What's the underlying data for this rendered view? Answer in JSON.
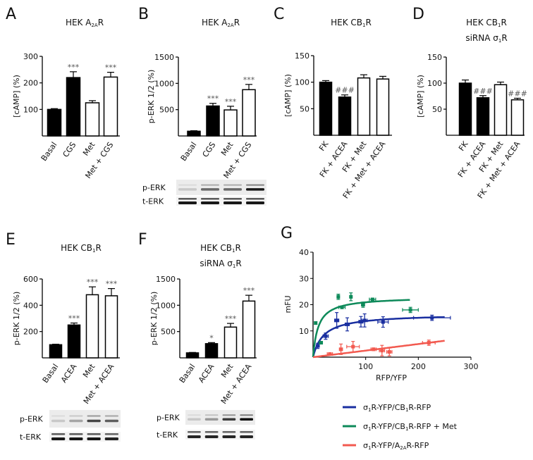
{
  "chart_data": [
    {
      "id": "A",
      "type": "bar",
      "letter": "A",
      "title": [
        [
          [
            "HEK A",
            0
          ],
          [
            "2A",
            1
          ],
          [
            "R",
            0
          ]
        ]
      ],
      "ylabel": "[cAMP] (%)",
      "ylim": [
        0,
        300
      ],
      "yticks": [
        100,
        200,
        300
      ],
      "categories": [
        "Basal",
        "CGS",
        "Met",
        "Met + CGS"
      ],
      "values": [
        100,
        220,
        125,
        222
      ],
      "errors": [
        3,
        22,
        8,
        18
      ],
      "fills": [
        "black",
        "black",
        "white",
        "white"
      ],
      "annotations": [
        "",
        "***",
        "",
        "***"
      ]
    },
    {
      "id": "B",
      "type": "bar",
      "letter": "B",
      "title": [
        [
          [
            "HEK A",
            0
          ],
          [
            "2A",
            1
          ],
          [
            "R",
            0
          ]
        ]
      ],
      "ylabel": "p-ERK 1/2 (%)",
      "ylim": [
        0,
        1500
      ],
      "yticks": [
        500,
        1000,
        1500
      ],
      "categories": [
        "Basal",
        "CGS",
        "Met",
        "Met + CGS"
      ],
      "values": [
        90,
        570,
        495,
        880
      ],
      "errors": [
        10,
        50,
        70,
        100
      ],
      "fills": [
        "black",
        "black",
        "white",
        "white"
      ],
      "annotations": [
        "",
        "***",
        "***",
        "***"
      ],
      "blot": {
        "rows": [
          {
            "label": "p-ERK",
            "band_intensity": [
              0.15,
              0.55,
              0.55,
              0.9
            ]
          },
          {
            "label": "t-ERK",
            "band_intensity": [
              0.9,
              0.9,
              0.9,
              0.9
            ]
          }
        ]
      }
    },
    {
      "id": "C",
      "type": "bar",
      "letter": "C",
      "title": [
        [
          [
            "HEK CB",
            0
          ],
          [
            "1",
            1
          ],
          [
            "R",
            0
          ]
        ]
      ],
      "ylabel": "[cAMP] (%)",
      "ylim": [
        0,
        150
      ],
      "yticks": [
        50,
        100,
        150
      ],
      "categories": [
        "FK",
        "FK + ACEA",
        "FK + Met",
        "FK + Met + ACEA"
      ],
      "values": [
        100,
        72,
        108,
        106
      ],
      "errors": [
        3,
        4,
        6,
        5
      ],
      "fills": [
        "black",
        "black",
        "white",
        "white"
      ],
      "annotations": [
        "",
        "###",
        "",
        ""
      ]
    },
    {
      "id": "D",
      "type": "bar",
      "letter": "D",
      "title": [
        [
          [
            "HEK CB",
            0
          ],
          [
            "1",
            1
          ],
          [
            "R",
            0
          ]
        ],
        [
          [
            "siRNA σ",
            0
          ],
          [
            "1",
            1
          ],
          [
            "R",
            0
          ]
        ]
      ],
      "ylabel": "[cAMP] (%)",
      "ylim": [
        0,
        150
      ],
      "yticks": [
        50,
        100,
        150
      ],
      "categories": [
        "FK",
        "FK + ACEA",
        "FK + Met",
        "FK + Met + ACEA"
      ],
      "values": [
        100,
        72,
        97,
        68
      ],
      "errors": [
        6,
        4,
        5,
        3
      ],
      "fills": [
        "black",
        "black",
        "white",
        "white"
      ],
      "annotations": [
        "",
        "###",
        "",
        "###"
      ]
    },
    {
      "id": "E",
      "type": "bar",
      "letter": "E",
      "title": [
        [
          [
            "HEK CB",
            0
          ],
          [
            "1",
            1
          ],
          [
            "R",
            0
          ]
        ]
      ],
      "ylabel": "p-ERK 1/2 (%)",
      "ylim": [
        0,
        600
      ],
      "yticks": [
        200,
        400,
        600
      ],
      "categories": [
        "Basal",
        "ACEA",
        "Met",
        "Met + ACEA"
      ],
      "values": [
        100,
        250,
        480,
        472
      ],
      "errors": [
        4,
        15,
        60,
        55
      ],
      "fills": [
        "black",
        "black",
        "white",
        "white"
      ],
      "annotations": [
        "",
        "***",
        "***",
        "***"
      ],
      "blot": {
        "rows": [
          {
            "label": "p-ERK",
            "band_intensity": [
              0.15,
              0.3,
              0.7,
              0.6
            ]
          },
          {
            "label": "t-ERK",
            "band_intensity": [
              0.9,
              0.9,
              0.9,
              0.85
            ]
          }
        ]
      }
    },
    {
      "id": "F",
      "type": "bar",
      "letter": "F",
      "title": [
        [
          [
            "HEK CB",
            0
          ],
          [
            "1",
            1
          ],
          [
            "R",
            0
          ]
        ],
        [
          [
            "siRNA σ",
            0
          ],
          [
            "1",
            1
          ],
          [
            "R",
            0
          ]
        ]
      ],
      "ylabel": "p-ERK 1/2 (%)",
      "ylim": [
        0,
        1500
      ],
      "yticks": [
        500,
        1000,
        1500
      ],
      "categories": [
        "Basal",
        "ACEA",
        "Met",
        "Met + ACEA"
      ],
      "values": [
        95,
        270,
        585,
        1080
      ],
      "errors": [
        8,
        20,
        70,
        110
      ],
      "fills": [
        "black",
        "black",
        "white",
        "white"
      ],
      "annotations": [
        "",
        "*",
        "***",
        "***"
      ],
      "blot": {
        "rows": [
          {
            "label": "p-ERK",
            "band_intensity": [
              0.15,
              0.35,
              0.75,
              0.95
            ]
          },
          {
            "label": "t-ERK",
            "band_intensity": [
              0.85,
              0.85,
              0.85,
              0.85
            ]
          }
        ]
      }
    },
    {
      "id": "G",
      "type": "scatter",
      "letter": "G",
      "xlabel": "RFP/YFP",
      "ylabel": "mFU",
      "xlim": [
        0,
        300
      ],
      "ylim": [
        0,
        40
      ],
      "xticks": [
        100,
        200,
        300
      ],
      "yticks": [
        10,
        20,
        30,
        40
      ],
      "legend_position": "bottom",
      "series": [
        {
          "name": [
            [
              "σ",
              0
            ],
            [
              "1",
              1
            ],
            [
              "R-YFP/CB",
              0
            ],
            [
              "1",
              1
            ],
            [
              "R-RFP",
              0
            ]
          ],
          "color": "#1a2fa0",
          "fit": {
            "model": "hyperbolic",
            "bmax": 16.5,
            "kd": 20,
            "xmax": 250
          },
          "points": [
            [
              9,
              4.3,
              3,
              1
            ],
            [
              24,
              8,
              5,
              1.2
            ],
            [
              45,
              14,
              4,
              3
            ],
            [
              65,
              12.5,
              4,
              2.5
            ],
            [
              91,
              13.5,
              4,
              2
            ],
            [
              98,
              14,
              5,
              2.5
            ],
            [
              133,
              13.4,
              10,
              2
            ],
            [
              226,
              15,
              35,
              1
            ]
          ]
        },
        {
          "name": [
            [
              "σ",
              0
            ],
            [
              "1",
              1
            ],
            [
              "R-YFP/CB",
              0
            ],
            [
              "1",
              1
            ],
            [
              "R-RFP + Met",
              0
            ]
          ],
          "color": "#0e8a5a",
          "fit": {
            "model": "hyperbolic",
            "bmax": 23,
            "kd": 10,
            "xmax": 185
          },
          "points": [
            [
              5,
              13,
              2,
              0.5
            ],
            [
              15,
              5.5,
              3,
              0.5
            ],
            [
              48,
              23,
              2,
              1
            ],
            [
              55,
              19,
              6,
              0.5
            ],
            [
              72,
              23,
              2,
              1.5
            ],
            [
              95,
              20,
              3,
              1
            ],
            [
              113,
              22,
              6,
              0.5
            ],
            [
              185,
              18,
              15,
              1
            ]
          ]
        },
        {
          "name": [
            [
              "σ",
              0
            ],
            [
              "1",
              1
            ],
            [
              "R-YFP/A",
              0
            ],
            [
              "2A",
              1
            ],
            [
              "R-RFP",
              0
            ]
          ],
          "color": "#f25a50",
          "fit": {
            "model": "linear",
            "slope": 0.025,
            "xmax": 250
          },
          "points": [
            [
              32,
              1.2,
              5,
              0.5
            ],
            [
              53,
              3,
              3,
              2
            ],
            [
              76,
              4,
              12,
              2
            ],
            [
              115,
              3,
              5,
              0.5
            ],
            [
              131,
              2.5,
              5,
              2
            ],
            [
              145,
              2,
              5,
              1.5
            ],
            [
              220,
              5.5,
              12,
              1
            ]
          ]
        }
      ]
    }
  ]
}
